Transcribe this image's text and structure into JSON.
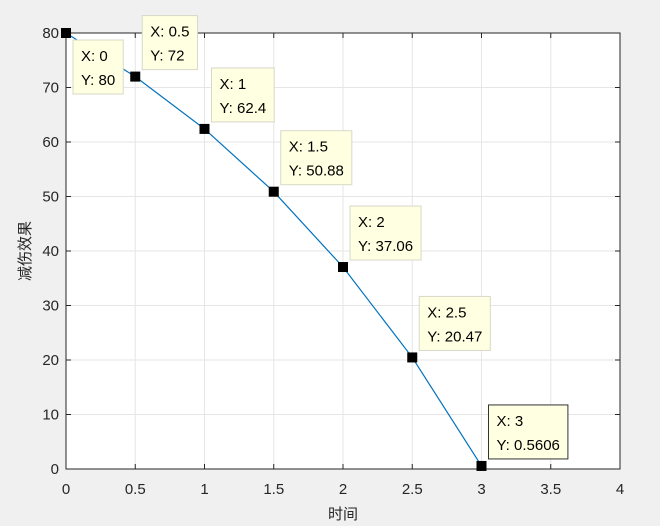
{
  "chart_data": {
    "type": "line",
    "xlabel": "时间",
    "ylabel": "减伤效果",
    "xlim": [
      0,
      4
    ],
    "ylim": [
      0,
      80
    ],
    "grid": true,
    "x_ticks": [
      "0",
      "0.5",
      "1",
      "1.5",
      "2",
      "2.5",
      "3",
      "3.5",
      "4"
    ],
    "y_ticks": [
      "0",
      "10",
      "20",
      "30",
      "40",
      "50",
      "60",
      "70",
      "80"
    ],
    "series": [
      {
        "x": [
          0,
          0.5,
          1,
          1.5,
          2,
          2.5,
          3
        ],
        "y": [
          80,
          72,
          62.4,
          50.88,
          37.06,
          20.47,
          0.5606
        ]
      }
    ],
    "datatips": [
      {
        "x": "X: 0",
        "y": "Y: 80"
      },
      {
        "x": "X: 0.5",
        "y": "Y: 72"
      },
      {
        "x": "X: 1",
        "y": "Y: 62.4"
      },
      {
        "x": "X: 1.5",
        "y": "Y: 50.88"
      },
      {
        "x": "X: 2",
        "y": "Y: 37.06"
      },
      {
        "x": "X: 2.5",
        "y": "Y: 20.47"
      },
      {
        "x": "X: 3",
        "y": "Y: 0.5606"
      }
    ],
    "colors": {
      "line": "#0072bd",
      "marker": "#000000",
      "tip_bg": "#ffffe1",
      "grid": "#e6e6e6"
    }
  }
}
